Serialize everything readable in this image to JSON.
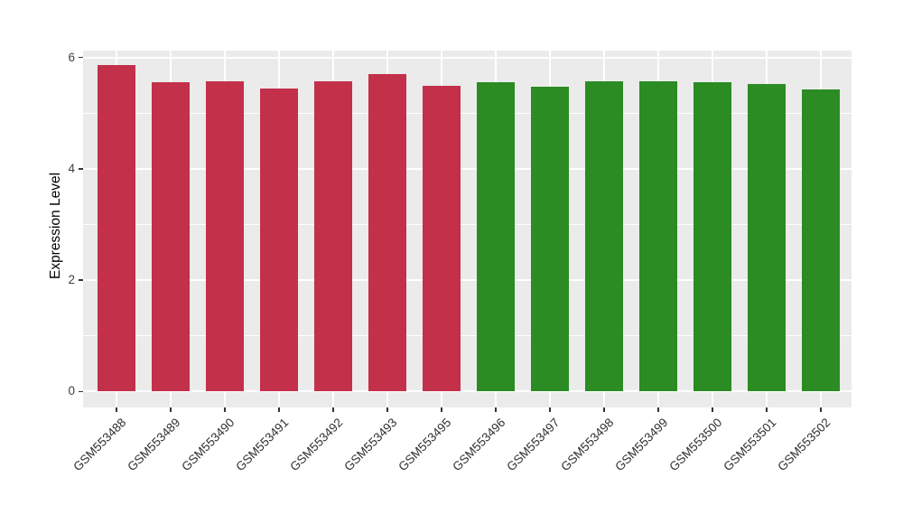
{
  "figure": {
    "background": "#FFFFFF",
    "panel_background": "#EBEBEB",
    "grid_color": "#FFFFFF",
    "tick_mark_color": "#333333",
    "axis_text_color": "#404040",
    "axis_title_color": "#000000"
  },
  "chart_data": {
    "type": "bar",
    "title": "",
    "xlabel": "",
    "ylabel": "Expression Level",
    "categories": [
      "GSM553488",
      "GSM553489",
      "GSM553490",
      "GSM553491",
      "GSM553492",
      "GSM553493",
      "GSM553495",
      "GSM553496",
      "GSM553497",
      "GSM553498",
      "GSM553499",
      "GSM553500",
      "GSM553501",
      "GSM553502"
    ],
    "values": [
      5.86,
      5.56,
      5.58,
      5.45,
      5.57,
      5.71,
      5.49,
      5.56,
      5.47,
      5.58,
      5.58,
      5.55,
      5.52,
      5.42
    ],
    "bar_colors": [
      "#C3304A",
      "#C3304A",
      "#C3304A",
      "#C3304A",
      "#C3304A",
      "#C3304A",
      "#C3304A",
      "#2A8C22",
      "#2A8C22",
      "#2A8C22",
      "#2A8C22",
      "#2A8C22",
      "#2A8C22",
      "#2A8C22"
    ],
    "group_colors": {
      "left_group": "#C3304A",
      "right_group": "#2A8C22"
    },
    "yticks": [
      0,
      2,
      4,
      6
    ],
    "minor_yticks": [
      1,
      3,
      5
    ],
    "ylim": [
      -0.29,
      6.13
    ],
    "x_tick_rotation_deg": 45,
    "grid": "on",
    "legend": "none"
  }
}
